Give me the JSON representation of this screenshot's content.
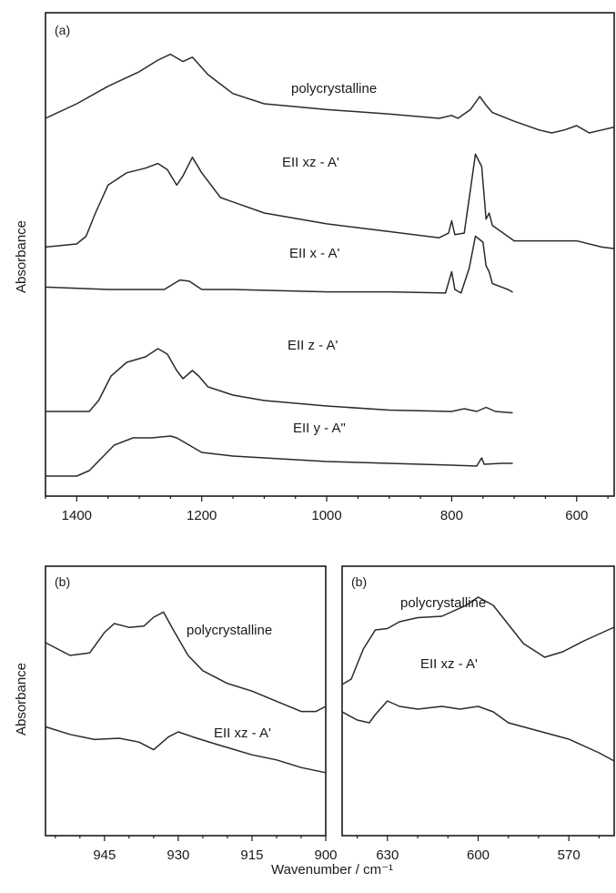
{
  "axes": {
    "ylabel_top": "Absorbance",
    "ylabel_bottom": "Absorbance",
    "xlabel": "Wavenumber / cm⁻¹"
  },
  "chart_data": [
    {
      "type": "line",
      "panel": "(a)",
      "xlabel": "",
      "ylabel": "Absorbance",
      "xlim": [
        1450,
        540
      ],
      "x_ticks": [
        1400,
        1200,
        1000,
        800,
        600
      ],
      "y_ticks": [],
      "grid": false,
      "series": [
        {
          "name": "polycrystalline",
          "label": "polycrystalline",
          "points": [
            [
              1450,
              0.0
            ],
            [
              1400,
              0.1
            ],
            [
              1350,
              0.22
            ],
            [
              1300,
              0.32
            ],
            [
              1270,
              0.4
            ],
            [
              1250,
              0.44
            ],
            [
              1230,
              0.39
            ],
            [
              1215,
              0.42
            ],
            [
              1190,
              0.3
            ],
            [
              1150,
              0.17
            ],
            [
              1100,
              0.1
            ],
            [
              1000,
              0.06
            ],
            [
              900,
              0.03
            ],
            [
              820,
              0.0
            ],
            [
              800,
              0.02
            ],
            [
              790,
              0.0
            ],
            [
              770,
              0.06
            ],
            [
              755,
              0.15
            ],
            [
              745,
              0.09
            ],
            [
              735,
              0.04
            ],
            [
              700,
              -0.02
            ],
            [
              660,
              -0.08
            ],
            [
              640,
              -0.1
            ],
            [
              620,
              -0.08
            ],
            [
              600,
              -0.05
            ],
            [
              580,
              -0.1
            ],
            [
              560,
              -0.08
            ],
            [
              540,
              -0.06
            ]
          ]
        },
        {
          "name": "E‖ xz - A'",
          "label": "EII xz - A'",
          "points": [
            [
              1450,
              -0.42
            ],
            [
              1400,
              -0.4
            ],
            [
              1385,
              -0.35
            ],
            [
              1370,
              -0.2
            ],
            [
              1350,
              -0.02
            ],
            [
              1320,
              0.06
            ],
            [
              1290,
              0.09
            ],
            [
              1270,
              0.12
            ],
            [
              1255,
              0.08
            ],
            [
              1240,
              -0.02
            ],
            [
              1230,
              0.04
            ],
            [
              1215,
              0.16
            ],
            [
              1200,
              0.06
            ],
            [
              1170,
              -0.1
            ],
            [
              1100,
              -0.2
            ],
            [
              1000,
              -0.27
            ],
            [
              900,
              -0.32
            ],
            [
              820,
              -0.36
            ],
            [
              805,
              -0.33
            ],
            [
              800,
              -0.25
            ],
            [
              795,
              -0.34
            ],
            [
              780,
              -0.33
            ],
            [
              770,
              -0.05
            ],
            [
              762,
              0.18
            ],
            [
              752,
              0.1
            ],
            [
              745,
              -0.24
            ],
            [
              740,
              -0.2
            ],
            [
              735,
              -0.28
            ],
            [
              700,
              -0.38
            ],
            [
              650,
              -0.38
            ],
            [
              600,
              -0.38
            ],
            [
              560,
              -0.42
            ],
            [
              540,
              -0.43
            ]
          ]
        },
        {
          "name": "E‖ x - A'",
          "label": "EII x - A'",
          "points": [
            [
              1450,
              -0.08
            ],
            [
              1350,
              -0.1
            ],
            [
              1260,
              -0.1
            ],
            [
              1235,
              -0.02
            ],
            [
              1220,
              -0.03
            ],
            [
              1200,
              -0.1
            ],
            [
              1150,
              -0.1
            ],
            [
              1000,
              -0.12
            ],
            [
              900,
              -0.12
            ],
            [
              810,
              -0.13
            ],
            [
              800,
              0.05
            ],
            [
              795,
              -0.1
            ],
            [
              785,
              -0.13
            ],
            [
              772,
              0.08
            ],
            [
              762,
              0.35
            ],
            [
              750,
              0.3
            ],
            [
              745,
              0.1
            ],
            [
              740,
              0.05
            ],
            [
              735,
              -0.05
            ],
            [
              720,
              -0.08
            ],
            [
              710,
              -0.1
            ],
            [
              703,
              -0.12
            ]
          ]
        },
        {
          "name": "E‖ z - A'",
          "label": "EII z - A'",
          "points": [
            [
              1450,
              -0.28
            ],
            [
              1380,
              -0.28
            ],
            [
              1365,
              -0.2
            ],
            [
              1345,
              -0.02
            ],
            [
              1320,
              0.08
            ],
            [
              1290,
              0.12
            ],
            [
              1270,
              0.18
            ],
            [
              1255,
              0.14
            ],
            [
              1240,
              0.02
            ],
            [
              1230,
              -0.04
            ],
            [
              1215,
              0.02
            ],
            [
              1205,
              -0.02
            ],
            [
              1190,
              -0.1
            ],
            [
              1150,
              -0.16
            ],
            [
              1100,
              -0.2
            ],
            [
              1000,
              -0.24
            ],
            [
              900,
              -0.27
            ],
            [
              800,
              -0.28
            ],
            [
              780,
              -0.26
            ],
            [
              760,
              -0.28
            ],
            [
              745,
              -0.25
            ],
            [
              730,
              -0.28
            ],
            [
              703,
              -0.29
            ]
          ]
        },
        {
          "name": "E‖ y - A\"",
          "label": "EII y - A\"",
          "points": [
            [
              1450,
              -0.48
            ],
            [
              1400,
              -0.48
            ],
            [
              1380,
              -0.42
            ],
            [
              1360,
              -0.28
            ],
            [
              1340,
              -0.14
            ],
            [
              1310,
              -0.06
            ],
            [
              1280,
              -0.06
            ],
            [
              1250,
              -0.04
            ],
            [
              1240,
              -0.06
            ],
            [
              1220,
              -0.14
            ],
            [
              1200,
              -0.22
            ],
            [
              1150,
              -0.26
            ],
            [
              1100,
              -0.28
            ],
            [
              1000,
              -0.32
            ],
            [
              900,
              -0.34
            ],
            [
              800,
              -0.36
            ],
            [
              760,
              -0.37
            ],
            [
              752,
              -0.28
            ],
            [
              748,
              -0.35
            ],
            [
              720,
              -0.34
            ],
            [
              703,
              -0.34
            ]
          ]
        }
      ]
    },
    {
      "type": "line",
      "panel": "(b)",
      "xlabel": "",
      "ylabel": "Absorbance",
      "xlim": [
        957,
        900
      ],
      "x_ticks": [
        945,
        930,
        915,
        900
      ],
      "y_ticks": [],
      "grid": false,
      "series": [
        {
          "name": "polycrystalline",
          "label": "polycrystalline",
          "points": [
            [
              957,
              0.6
            ],
            [
              952,
              0.5
            ],
            [
              948,
              0.52
            ],
            [
              945,
              0.68
            ],
            [
              943,
              0.75
            ],
            [
              940,
              0.72
            ],
            [
              937,
              0.73
            ],
            [
              935,
              0.8
            ],
            [
              933,
              0.84
            ],
            [
              931,
              0.7
            ],
            [
              928,
              0.5
            ],
            [
              925,
              0.38
            ],
            [
              920,
              0.28
            ],
            [
              915,
              0.22
            ],
            [
              910,
              0.14
            ],
            [
              905,
              0.06
            ],
            [
              902,
              0.06
            ],
            [
              900,
              0.1
            ]
          ]
        },
        {
          "name": "E‖ xz - A'",
          "label": "EII xz - A'",
          "points": [
            [
              957,
              -0.06
            ],
            [
              952,
              -0.12
            ],
            [
              947,
              -0.16
            ],
            [
              942,
              -0.15
            ],
            [
              938,
              -0.18
            ],
            [
              935,
              -0.24
            ],
            [
              932,
              -0.14
            ],
            [
              930,
              -0.1
            ],
            [
              927,
              -0.14
            ],
            [
              922,
              -0.2
            ],
            [
              915,
              -0.28
            ],
            [
              910,
              -0.32
            ],
            [
              905,
              -0.38
            ],
            [
              900,
              -0.42
            ]
          ]
        }
      ]
    },
    {
      "type": "line",
      "panel": "(b)",
      "xlabel": "",
      "ylabel": "",
      "xlim": [
        645,
        555
      ],
      "x_ticks": [
        630,
        600,
        570
      ],
      "y_ticks": [],
      "grid": false,
      "series": [
        {
          "name": "polycrystalline",
          "label": "polycrystalline",
          "points": [
            [
              645,
              0.0
            ],
            [
              642,
              0.04
            ],
            [
              638,
              0.26
            ],
            [
              634,
              0.4
            ],
            [
              630,
              0.41
            ],
            [
              626,
              0.46
            ],
            [
              620,
              0.49
            ],
            [
              612,
              0.5
            ],
            [
              604,
              0.58
            ],
            [
              600,
              0.64
            ],
            [
              595,
              0.58
            ],
            [
              590,
              0.44
            ],
            [
              585,
              0.3
            ],
            [
              578,
              0.2
            ],
            [
              572,
              0.24
            ],
            [
              565,
              0.32
            ],
            [
              555,
              0.42
            ]
          ]
        },
        {
          "name": "E‖ xz - A'",
          "label": "EII xz - A'",
          "points": [
            [
              645,
              -0.2
            ],
            [
              640,
              -0.26
            ],
            [
              636,
              -0.28
            ],
            [
              634,
              -0.22
            ],
            [
              630,
              -0.12
            ],
            [
              626,
              -0.16
            ],
            [
              620,
              -0.18
            ],
            [
              612,
              -0.16
            ],
            [
              606,
              -0.18
            ],
            [
              600,
              -0.16
            ],
            [
              595,
              -0.2
            ],
            [
              590,
              -0.28
            ],
            [
              580,
              -0.34
            ],
            [
              570,
              -0.4
            ],
            [
              560,
              -0.5
            ],
            [
              555,
              -0.56
            ]
          ]
        }
      ]
    }
  ]
}
